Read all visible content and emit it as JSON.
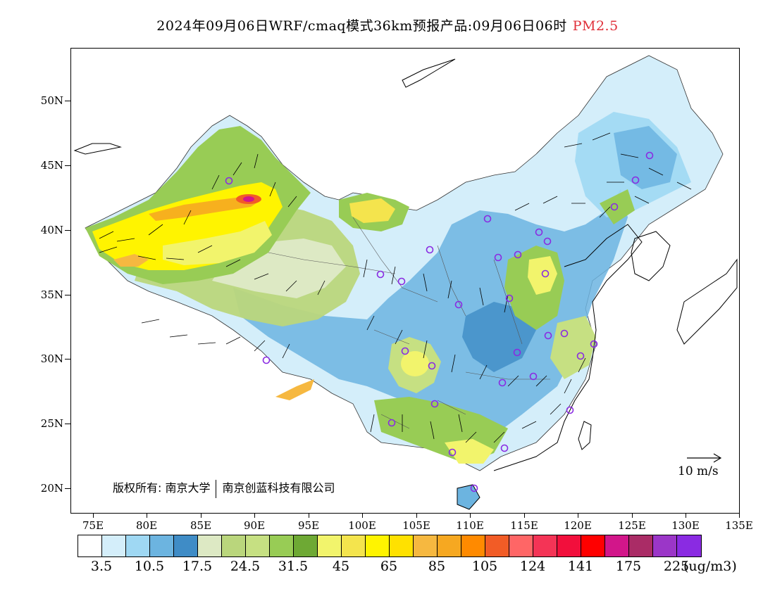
{
  "title": {
    "main": "2024年09月06日WRF/cmaq模式36km预报产品:09月06日06时",
    "pollutant": "PM2.5"
  },
  "map": {
    "lat_labels": [
      "50N",
      "45N",
      "40N",
      "35N",
      "30N",
      "25N",
      "20N"
    ],
    "lon_labels": [
      "75E",
      "80E",
      "85E",
      "90E",
      "95E",
      "100E",
      "105E",
      "110E",
      "115E",
      "120E",
      "125E",
      "130E",
      "135E"
    ],
    "copyright_prefix": "版权所有: 南京大学",
    "copyright_suffix": "南京创蓝科技有限公司",
    "wind_reference": "10 m/s"
  },
  "legend": {
    "colors": [
      "#ffffff",
      "#d4eefa",
      "#9fd8f3",
      "#6cb4e0",
      "#3f8cc6",
      "#dde9c4",
      "#bad67c",
      "#c6e082",
      "#98cc55",
      "#6ea934",
      "#f2f46c",
      "#f4e44d",
      "#fff400",
      "#ffe100",
      "#f6b840",
      "#f6a821",
      "#ff8a00",
      "#f25c26",
      "#ff6666",
      "#f43456",
      "#f20f3c",
      "#ff0000",
      "#d2168a",
      "#aa2c66",
      "#9b36c8",
      "#8a2be2"
    ],
    "labels": [
      "3.5",
      "10.5",
      "17.5",
      "24.5",
      "31.5",
      "45",
      "65",
      "85",
      "105",
      "124",
      "141",
      "175",
      "225"
    ],
    "unit": "(ug/m3)"
  },
  "colors": {
    "station_marker": "#8a2be2",
    "title_pollutant": "#e0303a"
  }
}
